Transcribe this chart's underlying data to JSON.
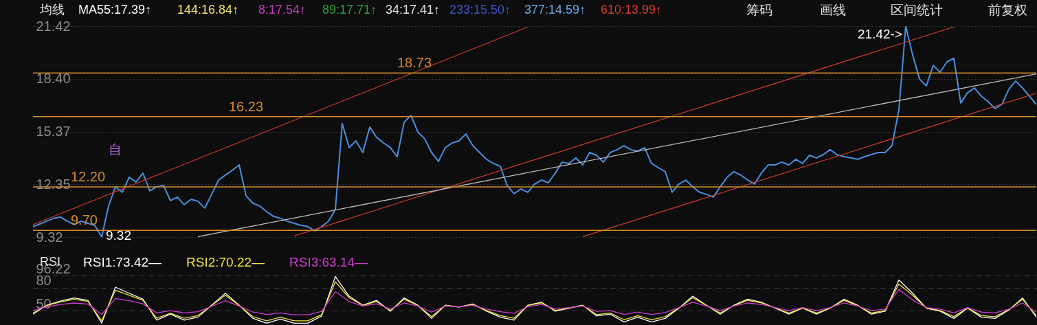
{
  "chart_data": [
    {
      "type": "line",
      "categories": [
        null,
        null,
        null,
        null,
        null,
        null,
        null,
        null,
        null,
        null,
        null,
        null,
        null,
        null,
        null,
        null,
        null,
        null,
        null,
        null,
        null,
        null,
        null,
        null,
        null,
        null,
        null,
        null,
        null,
        null,
        null,
        null,
        null,
        null,
        null,
        null,
        null,
        null,
        null,
        null,
        null,
        null,
        null,
        null,
        null,
        null,
        null,
        null,
        null,
        null,
        null,
        null,
        null,
        null,
        null,
        null,
        null,
        null,
        null,
        null,
        null,
        null,
        null,
        null,
        null,
        null,
        null,
        null,
        null,
        null,
        null,
        null,
        null,
        null,
        null,
        null,
        null,
        null,
        null,
        null,
        null,
        null,
        null,
        null,
        null,
        null,
        null,
        null,
        null,
        null,
        null,
        null,
        null,
        null,
        null,
        null,
        null,
        null,
        null,
        null,
        null,
        null,
        null,
        null,
        null,
        null,
        null,
        null,
        null,
        null,
        null,
        null,
        null,
        null,
        null,
        null,
        null,
        null,
        null,
        null,
        null,
        null,
        null,
        null,
        null,
        null,
        null,
        null,
        null,
        null,
        null,
        null,
        null,
        null,
        null,
        null,
        null,
        null,
        null,
        null,
        null,
        null,
        null,
        null,
        null,
        null,
        null
      ],
      "series": [
        {
          "color": "#4a8fe0",
          "values": [
            9.92,
            10.07,
            10.23,
            10.39,
            10.47,
            10.23,
            10.03,
            10.23,
            10.11,
            9.99,
            9.32,
            11.1,
            12.2,
            11.89,
            12.75,
            12.48,
            12.99,
            11.97,
            12.2,
            12.28,
            11.41,
            11.61,
            11.18,
            11.49,
            11.37,
            10.98,
            11.77,
            12.59,
            12.87,
            13.15,
            13.46,
            11.69,
            11.26,
            11.1,
            10.78,
            10.51,
            10.39,
            10.23,
            10.11,
            9.99,
            9.92,
            9.68,
            9.92,
            10.23,
            10.9,
            15.83,
            14.45,
            14.84,
            14.17,
            15.63,
            15.04,
            14.72,
            14.45,
            13.93,
            15.9,
            16.3,
            15.35,
            14.96,
            14.17,
            13.66,
            14.45,
            14.72,
            14.84,
            15.23,
            14.56,
            14.17,
            13.78,
            13.54,
            13.38,
            12.28,
            11.81,
            12.08,
            11.89,
            12.36,
            12.59,
            12.44,
            12.99,
            13.62,
            13.54,
            13.86,
            13.46,
            14.17,
            14.01,
            13.62,
            14.17,
            14.33,
            14.56,
            14.33,
            14.25,
            14.45,
            13.54,
            13.3,
            13.07,
            11.89,
            12.36,
            12.59,
            12.2,
            11.89,
            11.77,
            11.61,
            12.2,
            12.75,
            13.07,
            12.87,
            12.59,
            12.36,
            12.99,
            13.46,
            13.46,
            13.62,
            13.46,
            13.78,
            13.54,
            14.01,
            13.86,
            14.05,
            14.33,
            14.05,
            13.93,
            13.86,
            13.78,
            13.93,
            14.05,
            14.17,
            14.17,
            14.56,
            16.61,
            21.42,
            19.77,
            18.39,
            17.99,
            19.17,
            18.78,
            19.37,
            19.57,
            17.01,
            17.6,
            17.87,
            17.4,
            17.09,
            16.69,
            16.93,
            17.8,
            18.27,
            17.87,
            17.4,
            16.93
          ]
        },
        {
          "type": "line",
          "color": "#c0392b",
          "values": [
            10.03,
            null,
            null,
            null,
            null,
            null,
            null,
            null,
            null,
            null,
            null,
            null,
            null,
            null,
            null,
            null,
            null,
            null,
            null,
            null,
            null,
            null,
            null,
            null,
            null,
            null,
            null,
            null,
            null,
            null,
            null,
            null,
            null,
            null,
            null,
            null,
            null,
            null,
            null,
            null,
            null,
            null,
            null,
            null,
            null,
            null,
            null,
            null,
            null,
            null,
            null,
            null,
            null,
            null,
            null,
            null,
            null,
            null,
            null,
            null,
            null,
            null,
            null,
            null,
            null,
            null,
            null,
            null,
            null,
            null,
            null,
            null,
            21.37,
            null,
            null,
            null,
            null,
            null,
            null,
            null,
            null,
            null,
            null,
            null,
            null,
            null,
            null,
            null,
            null,
            null,
            null,
            null,
            null,
            null,
            null,
            null,
            null,
            null,
            null,
            null,
            null,
            null,
            null,
            null,
            null,
            null,
            null,
            null,
            null,
            null,
            null,
            null,
            null,
            null,
            null,
            null,
            null,
            null,
            null,
            null,
            null,
            null,
            null,
            null,
            null,
            null,
            null,
            null,
            null,
            null,
            null,
            null,
            null,
            null,
            null,
            null,
            null,
            null,
            null,
            null,
            null,
            null,
            null,
            null,
            null,
            null,
            null
          ]
        },
        {
          "type": "line",
          "color": "#c0392b",
          "values": [
            null,
            null,
            null,
            null,
            null,
            null,
            null,
            null,
            null,
            null,
            null,
            null,
            null,
            null,
            null,
            null,
            null,
            null,
            null,
            null,
            null,
            null,
            null,
            null,
            null,
            null,
            null,
            null,
            null,
            null,
            null,
            null,
            null,
            null,
            null,
            null,
            null,
            null,
            9.38,
            null,
            null,
            null,
            null,
            null,
            null,
            null,
            null,
            null,
            null,
            null,
            null,
            null,
            null,
            null,
            null,
            null,
            null,
            null,
            null,
            null,
            null,
            null,
            null,
            null,
            null,
            null,
            null,
            null,
            null,
            null,
            null,
            null,
            null,
            null,
            null,
            null,
            null,
            null,
            null,
            null,
            null,
            null,
            null,
            null,
            null,
            null,
            null,
            null,
            null,
            null,
            null,
            null,
            null,
            null,
            null,
            null,
            null,
            null,
            null,
            null,
            null,
            null,
            null,
            null,
            null,
            null,
            null,
            null,
            null,
            null,
            null,
            null,
            null,
            null,
            null,
            null,
            null,
            null,
            null,
            null,
            null,
            null,
            null,
            null,
            null,
            null,
            null,
            null,
            null,
            null,
            null,
            null,
            null,
            null,
            21.38,
            null,
            null,
            null,
            null,
            null,
            null,
            null,
            null,
            null,
            null,
            null,
            null
          ]
        },
        {
          "type": "line",
          "color": "#c0392b",
          "values": [
            null,
            null,
            null,
            null,
            null,
            null,
            null,
            null,
            null,
            null,
            null,
            null,
            null,
            null,
            null,
            null,
            null,
            null,
            null,
            null,
            null,
            null,
            null,
            null,
            null,
            null,
            null,
            null,
            null,
            null,
            null,
            null,
            null,
            null,
            null,
            null,
            null,
            null,
            null,
            null,
            null,
            null,
            null,
            null,
            null,
            null,
            null,
            null,
            null,
            null,
            null,
            null,
            null,
            null,
            null,
            null,
            null,
            null,
            null,
            null,
            null,
            null,
            null,
            null,
            null,
            null,
            null,
            null,
            null,
            null,
            null,
            null,
            null,
            null,
            null,
            null,
            null,
            null,
            null,
            null,
            9.34,
            null,
            null,
            null,
            null,
            null,
            null,
            null,
            null,
            null,
            null,
            null,
            null,
            null,
            null,
            null,
            null,
            null,
            null,
            null,
            null,
            null,
            null,
            null,
            null,
            null,
            null,
            null,
            null,
            null,
            null,
            null,
            null,
            null,
            null,
            null,
            null,
            null,
            null,
            null,
            null,
            null,
            null,
            null,
            null,
            null,
            null,
            null,
            null,
            null,
            null,
            null,
            null,
            null,
            null,
            null,
            null,
            null,
            null,
            null,
            null,
            null,
            null,
            null,
            null,
            null,
            17.57
          ]
        },
        {
          "type": "line",
          "color": "#bbbbbb",
          "values": [
            null,
            null,
            null,
            null,
            null,
            null,
            null,
            null,
            null,
            null,
            null,
            null,
            null,
            null,
            null,
            null,
            null,
            null,
            null,
            null,
            null,
            null,
            null,
            null,
            9.34,
            null,
            null,
            null,
            null,
            null,
            null,
            null,
            null,
            null,
            null,
            null,
            null,
            null,
            null,
            null,
            null,
            null,
            null,
            null,
            null,
            null,
            null,
            null,
            null,
            null,
            null,
            null,
            null,
            null,
            null,
            null,
            null,
            null,
            null,
            null,
            null,
            null,
            null,
            null,
            null,
            null,
            null,
            null,
            null,
            null,
            null,
            null,
            null,
            null,
            null,
            null,
            null,
            null,
            null,
            null,
            null,
            null,
            null,
            null,
            null,
            null,
            null,
            null,
            null,
            null,
            null,
            null,
            null,
            null,
            null,
            null,
            null,
            null,
            null,
            null,
            null,
            null,
            null,
            null,
            null,
            null,
            null,
            null,
            null,
            null,
            null,
            null,
            null,
            null,
            null,
            null,
            null,
            null,
            null,
            null,
            null,
            null,
            null,
            null,
            null,
            null,
            null,
            null,
            null,
            null,
            null,
            null,
            null,
            null,
            null,
            null,
            null,
            null,
            null,
            null,
            null,
            null,
            null,
            null,
            null,
            null,
            18.68
          ]
        }
      ],
      "ylim": [
        9.32,
        21.42
      ],
      "yticks": [
        21.42,
        {
          "value": 18.4,
          "label": "18.40"
        },
        15.37,
        12.35,
        9.32
      ],
      "grid": "y",
      "tick_labels": "y",
      "ref_lines": [
        {
          "axis": "y",
          "value": 18.73,
          "label": "18.73",
          "color": "#d48a2c"
        },
        {
          "axis": "y",
          "value": 16.23,
          "label": "16.23",
          "color": "#d48a2c"
        },
        {
          "axis": "y",
          "value": 12.2,
          "label": "12.20",
          "color": "#d48a2c"
        },
        {
          "axis": "y",
          "value": 9.7,
          "label": "9.70",
          "color": "#d48a2c"
        }
      ],
      "annotations": [
        "均线",
        "MA55:17.39↑",
        "144:16.84↑",
        "8:17.54↑",
        "89:17.71↑",
        "34:17.41↑",
        "233:15.50↑",
        "377:14.59↑",
        "610:13.99↑",
        "筹码",
        "画线",
        "区间统计",
        "前复权",
        "自",
        "21.42->",
        "9.32"
      ]
    },
    {
      "type": "line",
      "categories": [
        null,
        null,
        null,
        null,
        null,
        null,
        null,
        null,
        null,
        null,
        null,
        null,
        null,
        null,
        null,
        null,
        null,
        null,
        null,
        null,
        null,
        null,
        null,
        null,
        null,
        null,
        null,
        null,
        null,
        null,
        null,
        null,
        null,
        null,
        null,
        null,
        null,
        null,
        null,
        null,
        null,
        null,
        null,
        null,
        null,
        null,
        null,
        null,
        null,
        null,
        null,
        null,
        null,
        null,
        null,
        null,
        null,
        null,
        null,
        null,
        null,
        null,
        null,
        null,
        null,
        null,
        null,
        null,
        null,
        null,
        null,
        null,
        null,
        null
      ],
      "series": [
        {
          "name": "RSI1:73.42—",
          "color": "#ffffff",
          "values": [
            45.3,
            57.1,
            62.6,
            66.6,
            63.4,
            33.4,
            80.8,
            72.9,
            65.0,
            37.4,
            45.3,
            37.4,
            41.3,
            57.1,
            72.9,
            57.1,
            39.7,
            33.4,
            38.9,
            33.4,
            33.4,
            42.9,
            94.8,
            69.0,
            57.1,
            63.4,
            49.2,
            66.6,
            57.1,
            39.7,
            57.1,
            54.7,
            58.7,
            49.2,
            41.3,
            37.4,
            57.1,
            61.1,
            49.2,
            53.2,
            57.1,
            42.9,
            45.3,
            35.0,
            41.3,
            35.0,
            39.7,
            53.2,
            69.0,
            57.1,
            45.3,
            57.1,
            65.0,
            61.1,
            53.2,
            45.3,
            53.2,
            45.3,
            53.2,
            65.0,
            57.1,
            45.3,
            49.2,
            90.3,
            72.9,
            53.2,
            49.2,
            39.7,
            53.2,
            41.3,
            39.7,
            50.8,
            66.6,
            41.3
          ]
        },
        {
          "name": "RSI2:70.22—",
          "color": "#f2e33a",
          "values": [
            46.6,
            56.8,
            61.5,
            64.9,
            62.1,
            36.6,
            76.9,
            70.2,
            63.5,
            40.0,
            46.6,
            40.0,
            43.4,
            56.8,
            70.2,
            56.8,
            42.0,
            36.6,
            41.3,
            36.6,
            36.6,
            44.7,
            88.0,
            67.0,
            56.8,
            62.1,
            50.1,
            64.9,
            56.8,
            42.0,
            56.8,
            54.7,
            58.1,
            50.1,
            43.4,
            40.0,
            56.8,
            60.2,
            50.1,
            53.5,
            56.8,
            44.7,
            46.8,
            38.0,
            43.4,
            38.0,
            42.0,
            53.5,
            67.0,
            56.8,
            46.8,
            56.8,
            63.5,
            60.2,
            53.5,
            46.8,
            53.5,
            46.8,
            53.5,
            63.5,
            56.8,
            46.8,
            50.1,
            85.0,
            70.2,
            53.5,
            50.1,
            42.0,
            53.5,
            43.4,
            42.0,
            51.4,
            64.9,
            43.4
          ]
        },
        {
          "name": "RSI3:63.14—",
          "color": "#d23ad2",
          "values": [
            50.2,
            55.0,
            58.0,
            60.0,
            58.5,
            45.0,
            66.0,
            63.0,
            59.0,
            47.0,
            50.0,
            47.0,
            48.5,
            55.5,
            63.0,
            56.0,
            48.0,
            45.0,
            47.0,
            44.5,
            44.5,
            49.0,
            75.0,
            62.0,
            56.0,
            59.0,
            52.0,
            60.0,
            56.0,
            48.0,
            56.0,
            55.0,
            57.0,
            52.0,
            48.5,
            46.5,
            55.0,
            58.0,
            52.0,
            54.0,
            56.0,
            49.0,
            50.0,
            45.0,
            48.0,
            45.0,
            47.5,
            54.0,
            61.0,
            56.0,
            50.0,
            56.0,
            60.0,
            58.0,
            54.0,
            50.0,
            54.0,
            50.0,
            54.0,
            60.0,
            56.0,
            50.0,
            52.0,
            78.0,
            64.0,
            54.0,
            52.0,
            47.0,
            54.0,
            48.0,
            47.0,
            52.0,
            60.0,
            48.0
          ]
        }
      ],
      "ylim": [
        31,
        96.22
      ],
      "yticks": [
        96.22,
        80,
        50
      ],
      "grid": "y",
      "tick_labels": "y",
      "legend": "top left",
      "annotations": [
        "RSI"
      ]
    }
  ]
}
